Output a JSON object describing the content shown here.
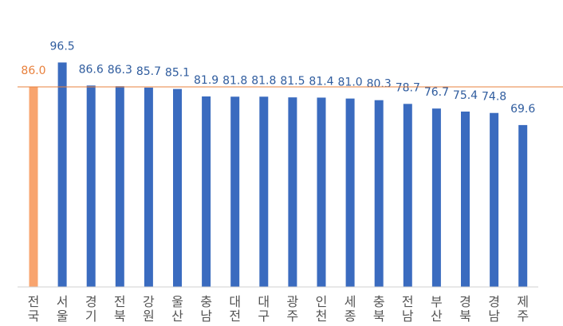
{
  "chart_data": {
    "type": "bar",
    "categories": [
      "전국",
      "서울",
      "경기",
      "전북",
      "강원",
      "울산",
      "충남",
      "대전",
      "대구",
      "광주",
      "인천",
      "세종",
      "충북",
      "전남",
      "부산",
      "경북",
      "경남",
      "제주"
    ],
    "values": [
      86.0,
      96.5,
      86.6,
      86.3,
      85.7,
      85.1,
      81.9,
      81.8,
      81.8,
      81.5,
      81.4,
      81.0,
      80.3,
      78.7,
      76.7,
      75.4,
      74.8,
      69.6
    ],
    "value_labels": [
      "86.0",
      "96.5",
      "86.6",
      "86.3",
      "85.7",
      "85.1",
      "81.9",
      "81.8",
      "81.8",
      "81.5",
      "81.4",
      "81.0",
      "80.3",
      "78.7",
      "76.7",
      "75.4",
      "74.8",
      "69.6"
    ],
    "colors": [
      "#f8a46e",
      "#3a6bbf",
      "#3a6bbf",
      "#3a6bbf",
      "#3a6bbf",
      "#3a6bbf",
      "#3a6bbf",
      "#3a6bbf",
      "#3a6bbf",
      "#3a6bbf",
      "#3a6bbf",
      "#3a6bbf",
      "#3a6bbf",
      "#3a6bbf",
      "#3a6bbf",
      "#3a6bbf",
      "#3a6bbf",
      "#3a6bbf"
    ],
    "label_colors": [
      "#e8803c",
      "#2f5c9e",
      "#2f5c9e",
      "#2f5c9e",
      "#2f5c9e",
      "#2f5c9e",
      "#2f5c9e",
      "#2f5c9e",
      "#2f5c9e",
      "#2f5c9e",
      "#2f5c9e",
      "#2f5c9e",
      "#2f5c9e",
      "#2f5c9e",
      "#2f5c9e",
      "#2f5c9e",
      "#2f5c9e",
      "#2f5c9e"
    ],
    "ylim": [
      0,
      110
    ]
  }
}
